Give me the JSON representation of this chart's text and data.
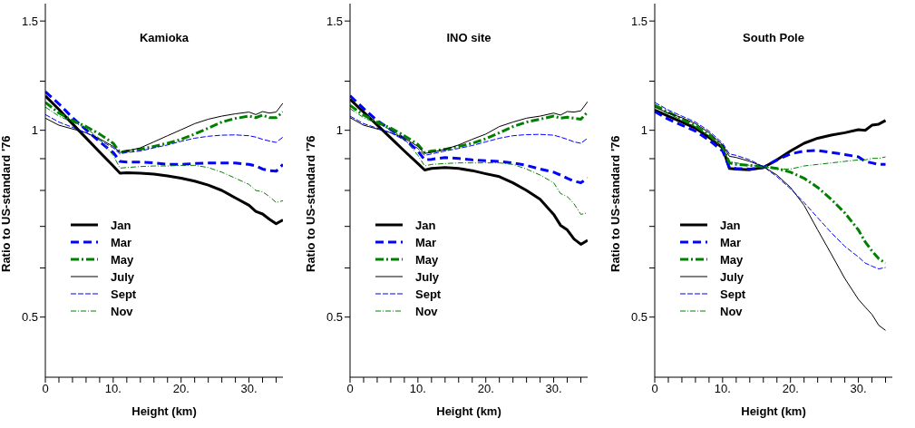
{
  "chart_data": [
    {
      "type": "line",
      "title": "Kamioka",
      "xlabel": "Height (km)",
      "ylabel": "Ratio to US-standard '76",
      "log": "y",
      "legend": "bottom left",
      "xlim": [
        0,
        35
      ],
      "xticks": [
        {
          "value": 0,
          "label": "0"
        },
        {
          "value": 2,
          "label": null
        },
        {
          "value": 4,
          "label": null
        },
        {
          "value": 6,
          "label": null
        },
        {
          "value": 8,
          "label": null
        },
        {
          "value": 10,
          "label": "10."
        },
        {
          "value": 12,
          "label": null
        },
        {
          "value": 14,
          "label": null
        },
        {
          "value": 16,
          "label": null
        },
        {
          "value": 18,
          "label": null
        },
        {
          "value": 20,
          "label": "20."
        },
        {
          "value": 22,
          "label": null
        },
        {
          "value": 24,
          "label": null
        },
        {
          "value": 26,
          "label": null
        },
        {
          "value": 28,
          "label": null
        },
        {
          "value": 30,
          "label": "30."
        },
        {
          "value": 32,
          "label": null
        },
        {
          "value": 34,
          "label": null
        }
      ],
      "ylim": [
        0.4,
        1.6
      ],
      "yticks": [
        0.5,
        {
          "value": 0.6,
          "label": null
        },
        {
          "value": 0.7,
          "label": null
        },
        {
          "value": 0.8,
          "label": null
        },
        {
          "value": 0.9,
          "label": null
        },
        1,
        {
          "value": 1.2,
          "label": null
        },
        1.5
      ],
      "x": [
        0,
        2,
        4,
        6,
        8,
        10,
        11,
        12,
        14,
        16,
        18,
        20,
        22,
        24,
        26,
        28,
        30,
        31,
        32,
        33,
        34,
        35
      ],
      "series": [
        {
          "name": "Jan",
          "color": "#000000",
          "line_style": "solid",
          "values": [
            1.136,
            1.08,
            1.024,
            0.972,
            0.922,
            0.876,
            0.853,
            0.854,
            0.853,
            0.85,
            0.844,
            0.837,
            0.828,
            0.816,
            0.8,
            0.778,
            0.757,
            0.74,
            0.733,
            0.719,
            0.707,
            0.717
          ]
        },
        {
          "name": "Mar",
          "color": "#0000ff",
          "line_style": "dashed",
          "values": [
            1.154,
            1.103,
            1.048,
            1.002,
            0.958,
            0.921,
            0.891,
            0.889,
            0.889,
            0.886,
            0.881,
            0.881,
            0.884,
            0.886,
            0.886,
            0.886,
            0.881,
            0.876,
            0.866,
            0.861,
            0.859,
            0.881
          ]
        },
        {
          "name": "May",
          "color": "#008000",
          "line_style": "dashdot",
          "values": [
            1.109,
            1.066,
            1.037,
            1.014,
            0.986,
            0.953,
            0.921,
            0.926,
            0.932,
            0.942,
            0.953,
            0.967,
            0.986,
            1.008,
            1.031,
            1.045,
            1.054,
            1.048,
            1.058,
            1.048,
            1.048,
            1.07
          ]
        },
        {
          "name": "July",
          "color": "#000000",
          "line_style": "solid",
          "values": [
            1.046,
            1.019,
            1.005,
            0.991,
            0.969,
            0.942,
            0.921,
            0.926,
            0.937,
            0.958,
            0.98,
            1.002,
            1.025,
            1.042,
            1.054,
            1.063,
            1.07,
            1.06,
            1.072,
            1.066,
            1.07,
            1.106
          ]
        },
        {
          "name": "Sept",
          "color": "#0000ff",
          "line_style": "dashed",
          "values": [
            1.06,
            1.031,
            1.011,
            0.991,
            0.964,
            0.937,
            0.916,
            0.921,
            0.926,
            0.937,
            0.947,
            0.96,
            0.971,
            0.978,
            0.982,
            0.983,
            0.98,
            0.975,
            0.967,
            0.961,
            0.956,
            0.975
          ]
        },
        {
          "name": "Nov",
          "color": "#008000",
          "line_style": "dashdot",
          "values": [
            1.09,
            1.054,
            1.031,
            1.008,
            0.969,
            0.911,
            0.869,
            0.871,
            0.874,
            0.876,
            0.876,
            0.878,
            0.878,
            0.871,
            0.856,
            0.837,
            0.818,
            0.8,
            0.796,
            0.782,
            0.765,
            0.77
          ]
        }
      ]
    },
    {
      "type": "line",
      "title": "INO site",
      "xlabel": "Height (km)",
      "ylabel": "Ratio to US-standard '76",
      "log": "y",
      "legend": "bottom left",
      "xlim": [
        0,
        35
      ],
      "xticks": [
        {
          "value": 0,
          "label": "0"
        },
        {
          "value": 2,
          "label": null
        },
        {
          "value": 4,
          "label": null
        },
        {
          "value": 6,
          "label": null
        },
        {
          "value": 8,
          "label": null
        },
        {
          "value": 10,
          "label": "10."
        },
        {
          "value": 12,
          "label": null
        },
        {
          "value": 14,
          "label": null
        },
        {
          "value": 16,
          "label": null
        },
        {
          "value": 18,
          "label": null
        },
        {
          "value": 20,
          "label": "20."
        },
        {
          "value": 22,
          "label": null
        },
        {
          "value": 24,
          "label": null
        },
        {
          "value": 26,
          "label": null
        },
        {
          "value": 28,
          "label": null
        },
        {
          "value": 30,
          "label": "30."
        },
        {
          "value": 32,
          "label": null
        },
        {
          "value": 34,
          "label": null
        }
      ],
      "ylim": [
        0.4,
        1.6
      ],
      "yticks": [
        0.5,
        {
          "value": 0.6,
          "label": null
        },
        {
          "value": 0.7,
          "label": null
        },
        {
          "value": 0.8,
          "label": null
        },
        {
          "value": 0.9,
          "label": null
        },
        1,
        {
          "value": 1.2,
          "label": null
        },
        1.5
      ],
      "x": [
        0,
        2,
        4,
        6,
        8,
        10,
        11,
        12,
        14,
        16,
        18,
        20,
        22,
        24,
        26,
        28,
        30,
        31,
        32,
        33,
        34,
        35
      ],
      "series": [
        {
          "name": "Jan",
          "color": "#000000",
          "line_style": "solid",
          "values": [
            1.122,
            1.07,
            1.02,
            0.972,
            0.926,
            0.884,
            0.863,
            0.868,
            0.871,
            0.868,
            0.861,
            0.851,
            0.842,
            0.823,
            0.8,
            0.774,
            0.732,
            0.703,
            0.691,
            0.668,
            0.655,
            0.665
          ]
        },
        {
          "name": "Mar",
          "color": "#0000ff",
          "line_style": "dashed",
          "values": [
            1.137,
            1.084,
            1.037,
            1.002,
            0.969,
            0.926,
            0.896,
            0.898,
            0.904,
            0.901,
            0.896,
            0.893,
            0.891,
            0.886,
            0.878,
            0.866,
            0.856,
            0.847,
            0.837,
            0.828,
            0.823,
            0.837
          ]
        },
        {
          "name": "May",
          "color": "#008000",
          "line_style": "dashdot",
          "values": [
            1.097,
            1.058,
            1.031,
            1.008,
            0.98,
            0.949,
            0.921,
            0.926,
            0.932,
            0.942,
            0.953,
            0.969,
            0.991,
            1.014,
            1.031,
            1.042,
            1.054,
            1.046,
            1.05,
            1.046,
            1.042,
            1.07
          ]
        },
        {
          "name": "July",
          "color": "#000000",
          "line_style": "solid",
          "values": [
            1.048,
            1.019,
            1.005,
            0.991,
            0.971,
            0.942,
            0.918,
            0.921,
            0.932,
            0.947,
            0.967,
            0.986,
            1.014,
            1.031,
            1.046,
            1.054,
            1.066,
            1.058,
            1.072,
            1.07,
            1.075,
            1.112
          ]
        },
        {
          "name": "Sept",
          "color": "#0000ff",
          "line_style": "dashed",
          "values": [
            1.054,
            1.025,
            1.008,
            0.991,
            0.964,
            0.935,
            0.911,
            0.916,
            0.926,
            0.935,
            0.945,
            0.958,
            0.971,
            0.98,
            0.984,
            0.985,
            0.982,
            0.975,
            0.967,
            0.958,
            0.953,
            0.971
          ]
        },
        {
          "name": "Nov",
          "color": "#008000",
          "line_style": "dashdot",
          "values": [
            1.084,
            1.048,
            1.025,
            1.002,
            0.969,
            0.911,
            0.876,
            0.881,
            0.884,
            0.886,
            0.886,
            0.886,
            0.886,
            0.881,
            0.866,
            0.847,
            0.823,
            0.791,
            0.782,
            0.761,
            0.732,
            0.736
          ]
        }
      ]
    },
    {
      "type": "line",
      "title": "South Pole",
      "xlabel": "Height (km)",
      "ylabel": "Ratio to US-standard '76",
      "log": "y",
      "legend": "bottom left",
      "xlim": [
        0,
        35
      ],
      "xticks": [
        {
          "value": 0,
          "label": "0"
        },
        {
          "value": 2,
          "label": null
        },
        {
          "value": 4,
          "label": null
        },
        {
          "value": 6,
          "label": null
        },
        {
          "value": 8,
          "label": null
        },
        {
          "value": 10,
          "label": "10."
        },
        {
          "value": 12,
          "label": null
        },
        {
          "value": 14,
          "label": null
        },
        {
          "value": 16,
          "label": null
        },
        {
          "value": 18,
          "label": null
        },
        {
          "value": 20,
          "label": "20."
        },
        {
          "value": 22,
          "label": null
        },
        {
          "value": 24,
          "label": null
        },
        {
          "value": 26,
          "label": null
        },
        {
          "value": 28,
          "label": null
        },
        {
          "value": 30,
          "label": "30."
        },
        {
          "value": 32,
          "label": null
        },
        {
          "value": 34,
          "label": null
        }
      ],
      "ylim": [
        0.4,
        1.6
      ],
      "yticks": [
        0.5,
        {
          "value": 0.6,
          "label": null
        },
        {
          "value": 0.7,
          "label": null
        },
        {
          "value": 0.8,
          "label": null
        },
        {
          "value": 0.9,
          "label": null
        },
        1,
        {
          "value": 1.2,
          "label": null
        },
        1.5
      ],
      "x": [
        0,
        2,
        4,
        6,
        8,
        10,
        11,
        12,
        14,
        16,
        18,
        20,
        22,
        24,
        26,
        28,
        30,
        31,
        32,
        33,
        34
      ],
      "series": [
        {
          "name": "Jan",
          "color": "#000000",
          "line_style": "solid",
          "values": [
            1.078,
            1.054,
            1.031,
            1.008,
            0.974,
            0.937,
            0.868,
            0.866,
            0.864,
            0.871,
            0.896,
            0.926,
            0.953,
            0.971,
            0.982,
            0.991,
            1.002,
            1.0,
            1.019,
            1.023,
            1.037
          ]
        },
        {
          "name": "Mar",
          "color": "#0000ff",
          "line_style": "dashed",
          "values": [
            1.072,
            1.042,
            1.019,
            0.997,
            0.964,
            0.926,
            0.871,
            0.868,
            0.866,
            0.871,
            0.896,
            0.916,
            0.926,
            0.928,
            0.921,
            0.914,
            0.906,
            0.891,
            0.886,
            0.881,
            0.881
          ]
        },
        {
          "name": "May",
          "color": "#008000",
          "line_style": "dashdot",
          "values": [
            1.097,
            1.07,
            1.042,
            1.016,
            0.982,
            0.942,
            0.886,
            0.881,
            0.878,
            0.874,
            0.868,
            0.856,
            0.837,
            0.809,
            0.774,
            0.736,
            0.691,
            0.661,
            0.639,
            0.621,
            0.611
          ]
        },
        {
          "name": "July",
          "color": "#000000",
          "line_style": "solid",
          "values": [
            1.09,
            1.066,
            1.048,
            1.025,
            0.991,
            0.947,
            0.908,
            0.904,
            0.891,
            0.874,
            0.847,
            0.809,
            0.757,
            0.691,
            0.632,
            0.577,
            0.534,
            0.519,
            0.505,
            0.485,
            0.476
          ]
        },
        {
          "name": "Sept",
          "color": "#0000ff",
          "line_style": "dashed",
          "values": [
            1.109,
            1.078,
            1.054,
            1.031,
            0.997,
            0.953,
            0.916,
            0.911,
            0.896,
            0.874,
            0.842,
            0.805,
            0.765,
            0.723,
            0.684,
            0.65,
            0.625,
            0.611,
            0.604,
            0.598,
            0.601
          ]
        },
        {
          "name": "Nov",
          "color": "#008000",
          "line_style": "dashdot",
          "values": [
            1.09,
            1.063,
            1.039,
            1.014,
            0.98,
            0.937,
            0.891,
            0.886,
            0.878,
            0.874,
            0.866,
            0.866,
            0.876,
            0.881,
            0.886,
            0.891,
            0.896,
            0.896,
            0.901,
            0.901,
            0.906
          ]
        }
      ]
    }
  ]
}
